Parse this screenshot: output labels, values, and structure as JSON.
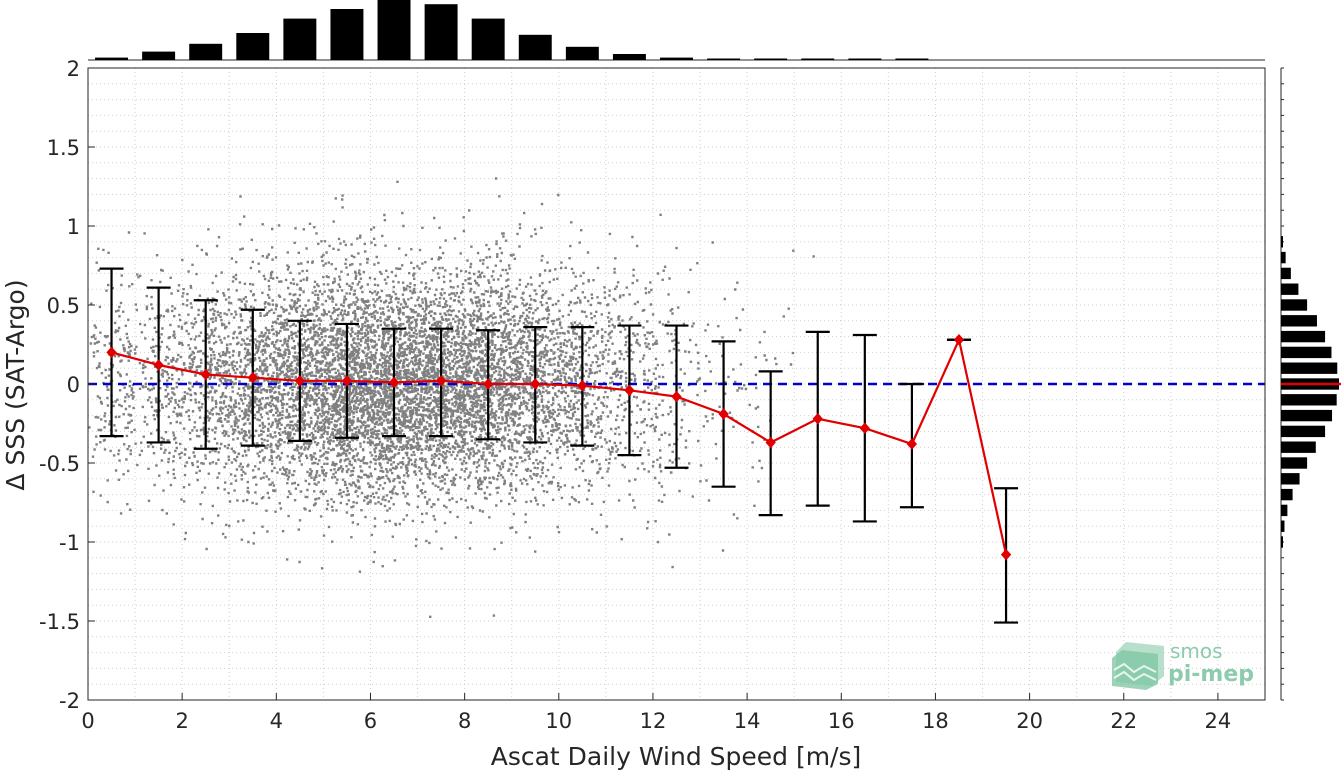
{
  "chart_data": {
    "type": "scatter",
    "xlabel": "Ascat Daily Wind Speed [m/s]",
    "ylabel": "Δ SSS (SAT-Argo)",
    "xlim": [
      0,
      25
    ],
    "ylim": [
      -2,
      2
    ],
    "xticks": [
      0,
      2,
      4,
      6,
      8,
      10,
      12,
      14,
      16,
      18,
      20,
      22,
      24
    ],
    "yticks": [
      2,
      1.5,
      1,
      0.5,
      0,
      -0.5,
      -1,
      -1.5,
      -2
    ],
    "ytick_labels": [
      "2",
      "1.5",
      "1",
      "0.5",
      "0",
      "-0.5",
      "-1",
      "-1.5",
      "-2"
    ],
    "grid": true,
    "logo": {
      "line1": "smos",
      "line2": "pi-mep"
    },
    "colors": {
      "scatter": "#808080",
      "mean": "#e00000",
      "errorbar": "#000000",
      "zero_line": "#0000d0",
      "histogram": "#000000",
      "median": "#e00000"
    },
    "binned_stats": {
      "x": [
        0.5,
        1.5,
        2.5,
        3.5,
        4.5,
        5.5,
        6.5,
        7.5,
        8.5,
        9.5,
        10.5,
        11.5,
        12.5,
        13.5,
        14.5,
        15.5,
        16.5,
        17.5,
        18.5,
        19.5
      ],
      "mean": [
        0.2,
        0.12,
        0.06,
        0.04,
        0.02,
        0.02,
        0.01,
        0.02,
        0.0,
        0.0,
        -0.01,
        -0.04,
        -0.08,
        -0.19,
        -0.37,
        -0.22,
        -0.28,
        -0.38,
        0.28,
        -1.08
      ],
      "upper": [
        0.73,
        0.61,
        0.53,
        0.47,
        0.4,
        0.38,
        0.35,
        0.35,
        0.34,
        0.36,
        0.36,
        0.37,
        0.37,
        0.27,
        0.08,
        0.33,
        0.31,
        0.0,
        0.28,
        -0.66
      ],
      "lower": [
        -0.33,
        -0.37,
        -0.41,
        -0.39,
        -0.36,
        -0.34,
        -0.33,
        -0.33,
        -0.35,
        -0.37,
        -0.39,
        -0.45,
        -0.53,
        -0.65,
        -0.83,
        -0.77,
        -0.87,
        -0.78,
        0.28,
        -1.51
      ]
    },
    "x_histogram": {
      "centers": [
        0.5,
        1.5,
        2.5,
        3.5,
        4.5,
        5.5,
        6.5,
        7.5,
        8.5,
        9.5,
        10.5,
        11.5,
        12.5,
        13.5,
        14.5,
        15.5,
        16.5,
        17.5
      ],
      "relative_counts": [
        0.04,
        0.14,
        0.27,
        0.45,
        0.69,
        0.85,
        1.0,
        0.93,
        0.69,
        0.42,
        0.22,
        0.1,
        0.04,
        0.02,
        0.01,
        0.01,
        0.01,
        0.01
      ]
    },
    "y_histogram": {
      "centers": [
        0.9,
        0.8,
        0.7,
        0.6,
        0.5,
        0.4,
        0.3,
        0.2,
        0.1,
        0.0,
        -0.1,
        -0.2,
        -0.3,
        -0.4,
        -0.5,
        -0.6,
        -0.7,
        -0.8,
        -0.9,
        -1.0
      ],
      "relative_counts": [
        0.03,
        0.08,
        0.17,
        0.3,
        0.45,
        0.62,
        0.76,
        0.87,
        0.97,
        1.0,
        0.96,
        0.88,
        0.76,
        0.6,
        0.45,
        0.32,
        0.2,
        0.11,
        0.06,
        0.03
      ],
      "median": 0.0
    },
    "scatter_cloud": {
      "center_x": 6.5,
      "center_y": 0.01,
      "std_x": 3.2,
      "std_y": 0.36
    }
  }
}
